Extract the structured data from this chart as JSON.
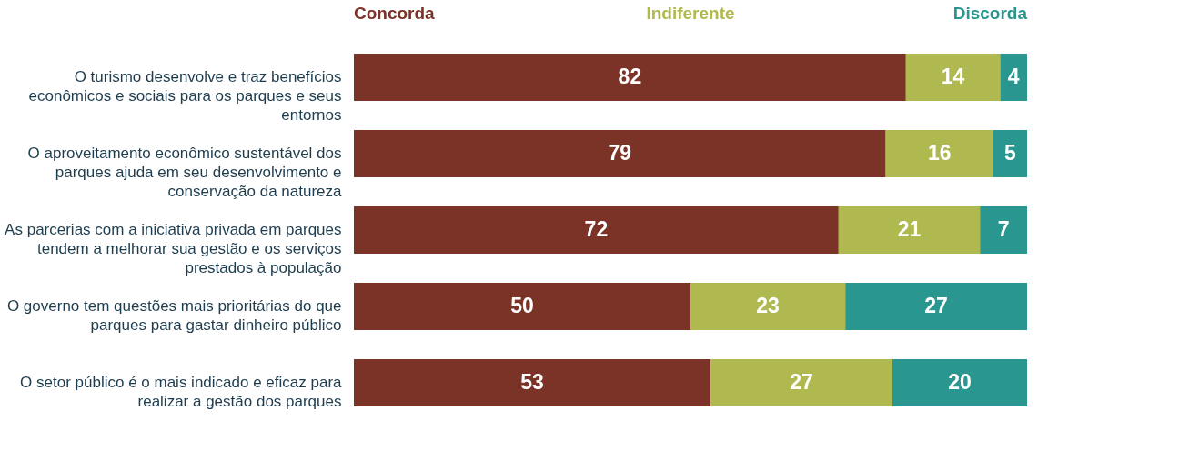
{
  "chart_data": {
    "type": "bar",
    "orientation": "horizontal",
    "stacked": true,
    "data_labels": true,
    "legend": "top",
    "categories": [
      "O turismo desenvolve e traz benefícios econômicos e sociais para os parques e seus entornos",
      "O aproveitamento econômico sustentável dos parques ajuda em seu desenvolvimento e conservação da natureza",
      "As parcerias com a iniciativa privada em parques tendem a melhorar sua gestão e os serviços prestados à população",
      "O governo tem questões mais prioritárias do que parques para gastar dinheiro público",
      "O setor público é o mais indicado e eficaz para realizar a gestão dos parques"
    ],
    "series": [
      {
        "name": "Concorda",
        "color": "#7b3328",
        "values": [
          82,
          79,
          72,
          50,
          53
        ]
      },
      {
        "name": "Indiferente",
        "color": "#b0b850",
        "values": [
          14,
          16,
          21,
          23,
          27
        ]
      },
      {
        "name": "Discorda",
        "color": "#2a9690",
        "values": [
          4,
          5,
          7,
          27,
          20
        ]
      }
    ]
  }
}
